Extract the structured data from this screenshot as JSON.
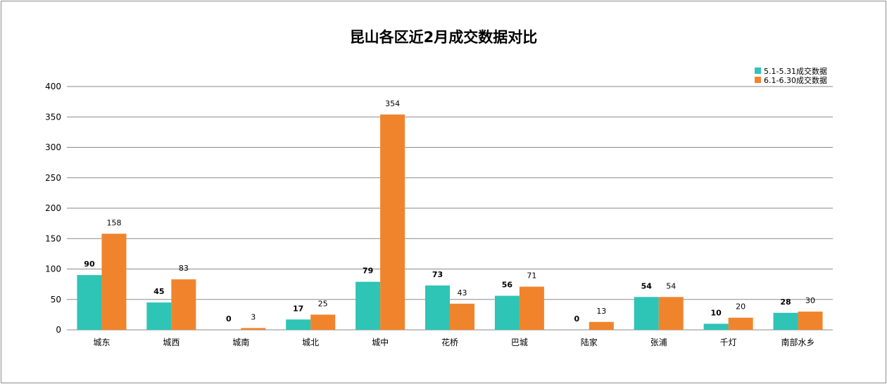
{
  "chart_data": {
    "type": "bar",
    "title": "昆山各区近2月成交数据对比",
    "xlabel": "",
    "ylabel": "",
    "ylim": [
      0,
      400
    ],
    "yticks": [
      0,
      50,
      100,
      150,
      200,
      250,
      300,
      350,
      400
    ],
    "grid": true,
    "legend_position": "top-right",
    "categories": [
      "城东",
      "城西",
      "城南",
      "城北",
      "城中",
      "花桥",
      "巴城",
      "陆家",
      "张浦",
      "千灯",
      "南部水乡"
    ],
    "series": [
      {
        "name": "5.1-5.31成交数据",
        "color": "#2ec4b6",
        "values": [
          90,
          45,
          0,
          17,
          79,
          73,
          56,
          0,
          54,
          10,
          28
        ]
      },
      {
        "name": "6.1-6.30成交数据",
        "color": "#f0842c",
        "values": [
          158,
          83,
          3,
          25,
          354,
          43,
          71,
          13,
          54,
          20,
          30
        ]
      }
    ]
  }
}
